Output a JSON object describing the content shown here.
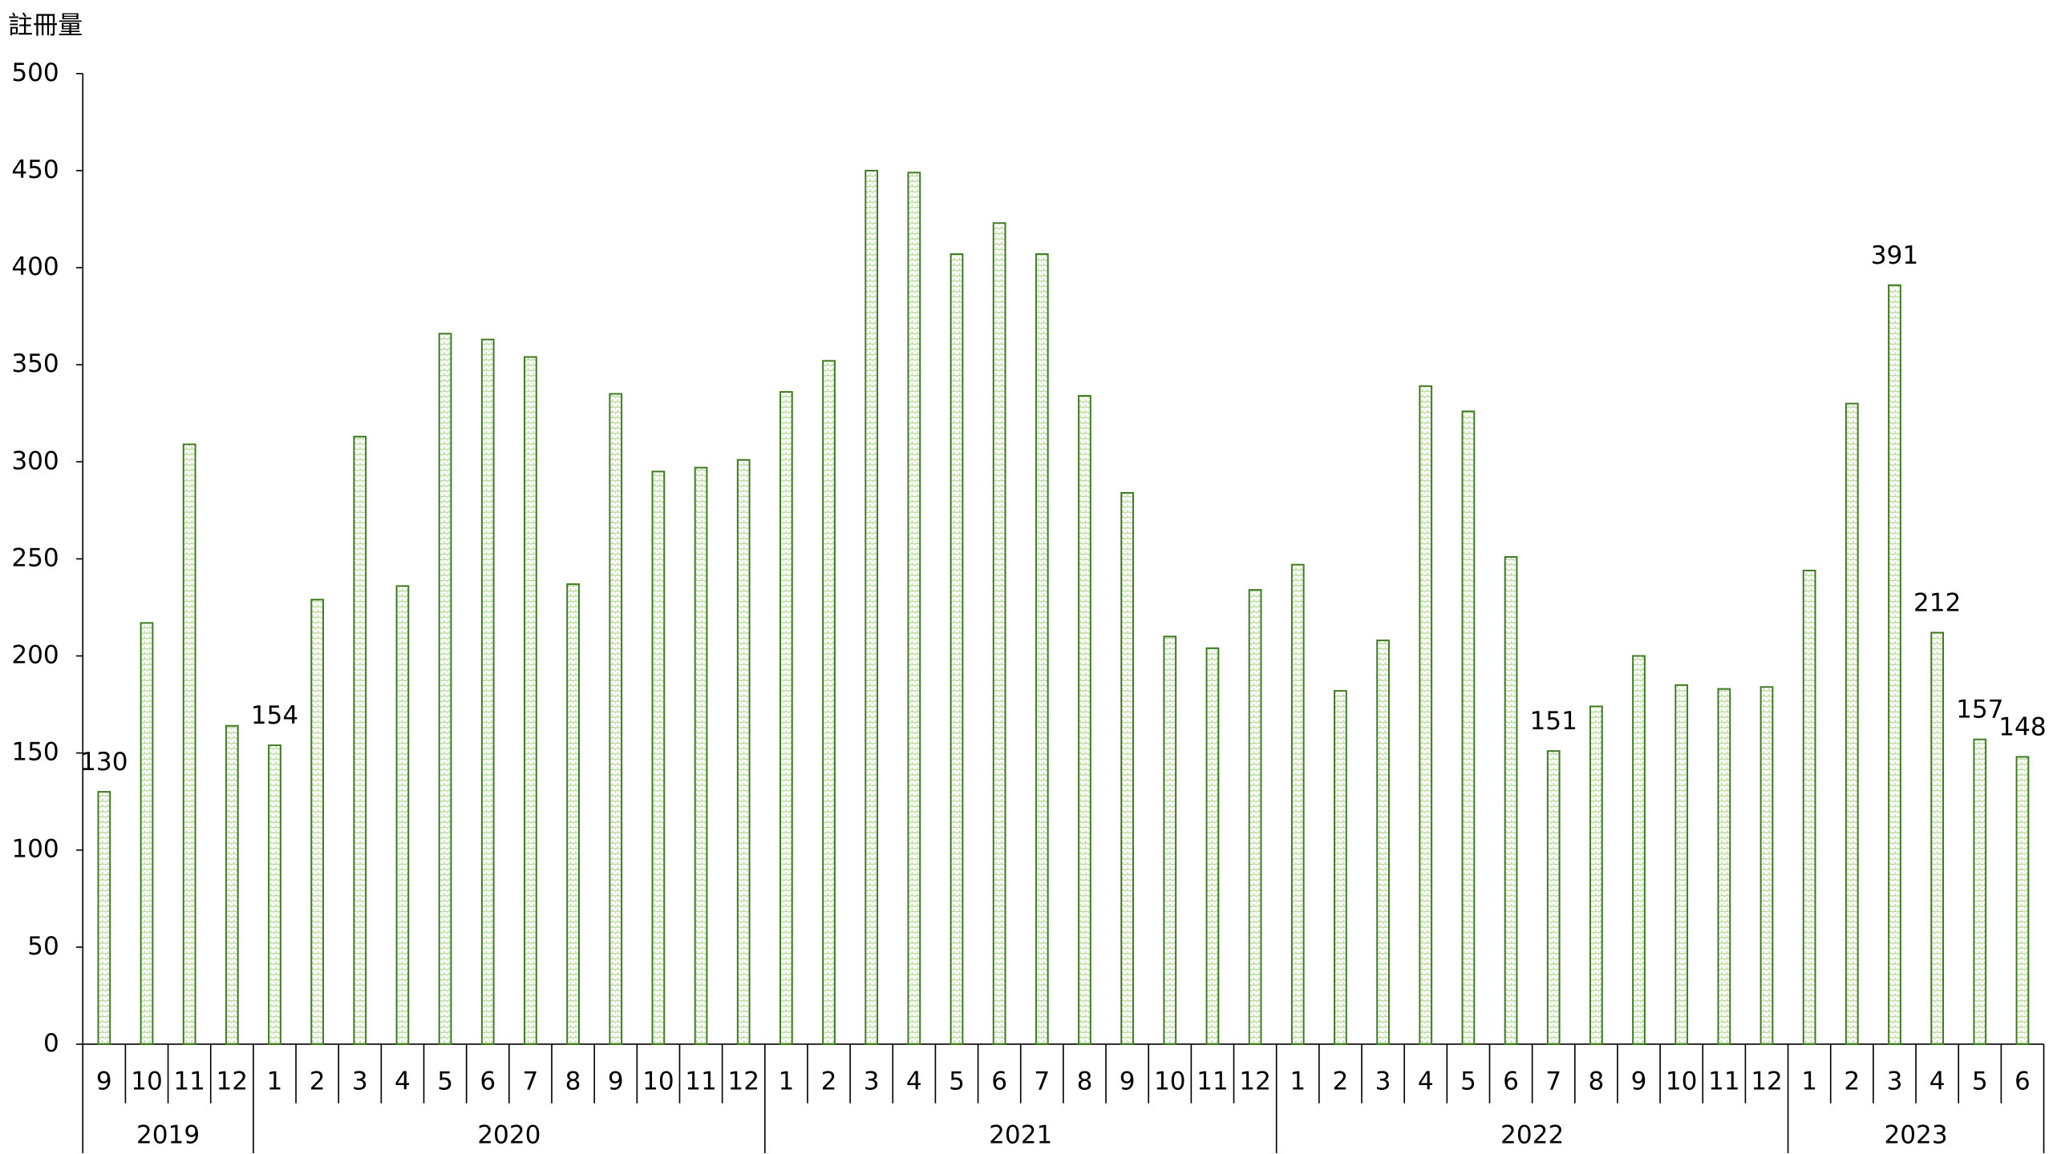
{
  "chart_data": {
    "type": "bar",
    "y_label": "註冊量",
    "ylim": [
      0,
      500
    ],
    "yticks": [
      0,
      50,
      100,
      150,
      200,
      250,
      300,
      350,
      400,
      450,
      500
    ],
    "grid": false,
    "color": "#3d7a1f",
    "fill": "#e6f2da",
    "groups": [
      {
        "name": "2019",
        "categories": [
          "9",
          "10",
          "11",
          "12"
        ],
        "values": [
          130,
          217,
          309,
          164
        ],
        "value_labels": [
          "130",
          null,
          null,
          null
        ]
      },
      {
        "name": "2020",
        "categories": [
          "1",
          "2",
          "3",
          "4",
          "5",
          "6",
          "7",
          "8",
          "9",
          "10",
          "11",
          "12"
        ],
        "values": [
          154,
          229,
          313,
          236,
          366,
          363,
          354,
          237,
          335,
          295,
          297,
          301
        ],
        "value_labels": [
          "154",
          null,
          null,
          null,
          null,
          null,
          null,
          null,
          null,
          null,
          null,
          null
        ]
      },
      {
        "name": "2021",
        "categories": [
          "1",
          "2",
          "3",
          "4",
          "5",
          "6",
          "7",
          "8",
          "9",
          "10",
          "11",
          "12"
        ],
        "values": [
          336,
          352,
          450,
          449,
          407,
          423,
          407,
          334,
          284,
          210,
          204,
          234
        ],
        "value_labels": [
          null,
          null,
          null,
          null,
          null,
          null,
          null,
          null,
          null,
          null,
          null,
          null
        ]
      },
      {
        "name": "2022",
        "categories": [
          "1",
          "2",
          "3",
          "4",
          "5",
          "6",
          "7",
          "8",
          "9",
          "10",
          "11",
          "12"
        ],
        "values": [
          247,
          182,
          208,
          339,
          326,
          251,
          151,
          174,
          200,
          185,
          183,
          184
        ],
        "value_labels": [
          null,
          null,
          null,
          null,
          null,
          null,
          "151",
          null,
          null,
          null,
          null,
          null
        ]
      },
      {
        "name": "2023",
        "categories": [
          "1",
          "2",
          "3",
          "4",
          "5",
          "6"
        ],
        "values": [
          244,
          330,
          391,
          212,
          157,
          148
        ],
        "value_labels": [
          null,
          null,
          "391",
          "212",
          "157",
          "148"
        ]
      }
    ]
  }
}
